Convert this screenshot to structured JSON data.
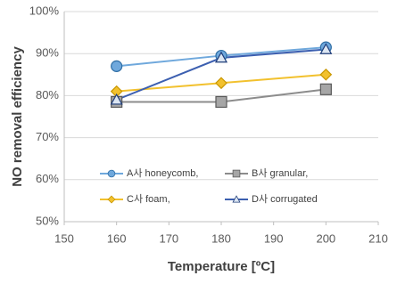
{
  "chart_data": {
    "type": "line",
    "x_label": "Temperature [ºC]",
    "y_label": "NO removal efficiency",
    "xlim": [
      150,
      210
    ],
    "xticks": [
      150,
      160,
      170,
      180,
      190,
      200,
      210
    ],
    "ylim": [
      50,
      100
    ],
    "yticks": [
      {
        "value": 50,
        "label": "50%"
      },
      {
        "value": 60,
        "label": "60%"
      },
      {
        "value": 70,
        "label": "70%"
      },
      {
        "value": 80,
        "label": "80%"
      },
      {
        "value": 90,
        "label": "90%"
      },
      {
        "value": 100,
        "label": "100%"
      }
    ],
    "grid": true,
    "x": [
      160,
      180,
      200
    ],
    "series": [
      {
        "name": "A사 honeycomb,",
        "color": "#6fa8dc",
        "marker": "circle",
        "values": [
          87,
          89.5,
          91.5
        ]
      },
      {
        "name": "B사 granular,",
        "color": "#8c8c8c",
        "marker": "square",
        "values": [
          78.5,
          78.5,
          81.5
        ]
      },
      {
        "name": "C사 foam,",
        "color": "#f2c12e",
        "marker": "diamond",
        "values": [
          81,
          83,
          85
        ]
      },
      {
        "name": "D사 corrugated",
        "color": "#3c5fb0",
        "marker": "triangle",
        "values": [
          79,
          89,
          91
        ]
      }
    ]
  }
}
